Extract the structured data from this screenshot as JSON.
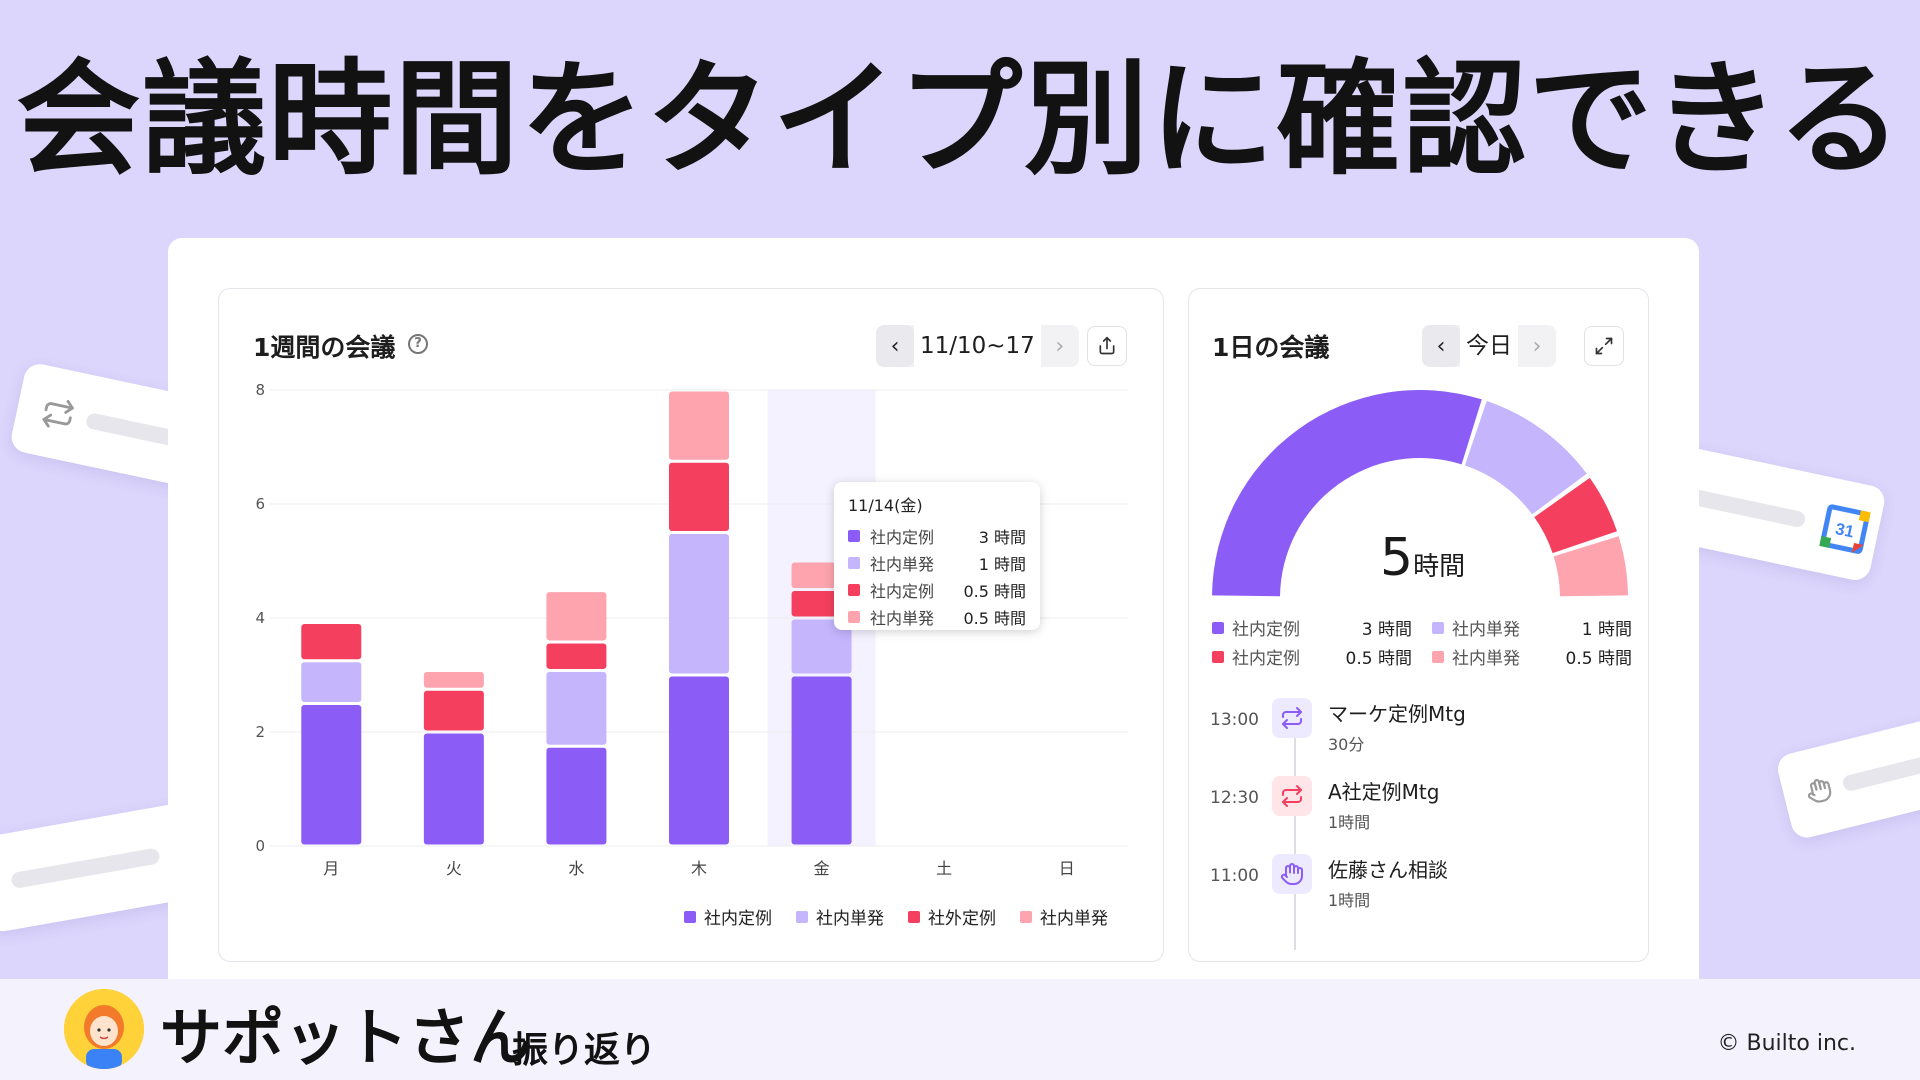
{
  "headline": "会議時間をタイプ別に確認できる",
  "week_card": {
    "title": "1週間の会議",
    "date_range": "11/10~17",
    "prev_label": "‹",
    "next_label": "›",
    "help_label": "?",
    "legend": [
      {
        "label": "社内定例",
        "color": "#8b5cf6"
      },
      {
        "label": "社内単発",
        "color": "#c4b5fd"
      },
      {
        "label": "社外定例",
        "color": "#f43f5e"
      },
      {
        "label": "社内単発",
        "color": "#fda4af"
      }
    ],
    "tooltip": {
      "title": "11/14(金)",
      "rows": [
        {
          "name": "社内定例",
          "value": "3 時間",
          "color": "#8b5cf6"
        },
        {
          "name": "社内単発",
          "value": "1 時間",
          "color": "#c4b5fd"
        },
        {
          "name": "社内定例",
          "value": "0.5 時間",
          "color": "#f43f5e"
        },
        {
          "name": "社内単発",
          "value": "0.5 時間",
          "color": "#fda4af"
        }
      ]
    }
  },
  "chart_data": {
    "type": "bar",
    "stacked": true,
    "categories": [
      "月",
      "火",
      "水",
      "木",
      "金",
      "土",
      "日"
    ],
    "series": [
      {
        "name": "社内定例",
        "color": "#8b5cf6",
        "values": [
          2.5,
          2,
          1.75,
          3,
          3,
          0,
          0
        ]
      },
      {
        "name": "社内単発",
        "color": "#c4b5fd",
        "values": [
          0.75,
          0,
          1.33,
          2.5,
          1,
          0,
          0
        ]
      },
      {
        "name": "社外定例",
        "color": "#f43f5e",
        "values": [
          0.67,
          0.75,
          0.5,
          1.25,
          0.5,
          0,
          0
        ]
      },
      {
        "name": "社内単発",
        "color": "#fda4af",
        "values": [
          0,
          0.33,
          0.9,
          1.25,
          0.5,
          0,
          0
        ]
      }
    ],
    "ylim": [
      0,
      8
    ],
    "yticks": [
      0,
      2,
      4,
      6,
      8
    ],
    "highlight_category": "金",
    "xlabel": "",
    "ylabel": ""
  },
  "day_card": {
    "title": "1日の会議",
    "day_label": "今日",
    "prev_label": "‹",
    "next_label": "›",
    "total_value": "5",
    "total_unit": "時間",
    "donut": [
      {
        "name": "社内定例",
        "value": 3,
        "color": "#8b5cf6"
      },
      {
        "name": "社内単発",
        "value": 1,
        "color": "#c4b5fd"
      },
      {
        "name": "社内定例",
        "value": 0.5,
        "color": "#f43f5e"
      },
      {
        "name": "社内単発",
        "value": 0.5,
        "color": "#fda4af"
      }
    ],
    "legend": [
      {
        "name": "社内定例",
        "value": "3 時間",
        "color": "#8b5cf6"
      },
      {
        "name": "社内単発",
        "value": "1 時間",
        "color": "#c4b5fd"
      },
      {
        "name": "社内定例",
        "value": "0.5 時間",
        "color": "#f43f5e"
      },
      {
        "name": "社内単発",
        "value": "0.5 時間",
        "color": "#fda4af"
      }
    ],
    "timeline": [
      {
        "time": "13:00",
        "title": "マーケ定例Mtg",
        "duration": "30分",
        "icon": "repeat-icon",
        "icon_color": "#8b5cf6",
        "bg": "#ede9fe"
      },
      {
        "time": "12:30",
        "title": "A社定例Mtg",
        "duration": "1時間",
        "icon": "repeat-icon",
        "icon_color": "#f43f5e",
        "bg": "#ffe4e8"
      },
      {
        "time": "11:00",
        "title": "佐藤さん相談",
        "duration": "1時間",
        "icon": "hand-icon",
        "icon_color": "#8b5cf6",
        "bg": "#ede9fe"
      }
    ]
  },
  "footer": {
    "brand": "サポットさん",
    "subtitle": "振り返り",
    "copyright": "© Builto inc."
  }
}
